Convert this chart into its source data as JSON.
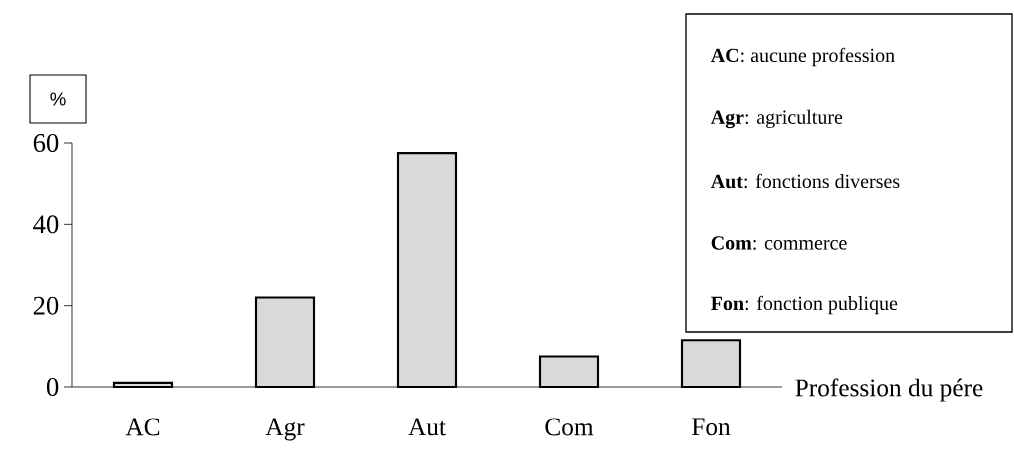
{
  "chart_data": {
    "type": "bar",
    "ylabel": "%",
    "xlabel": "Profession du pére",
    "categories": [
      "AC",
      "Agr",
      "Aut",
      "Com",
      "Fon"
    ],
    "values": [
      1,
      22,
      57.5,
      7.5,
      11.5
    ],
    "color": "#d9d9d9",
    "ylim": [
      0,
      60
    ],
    "yticks": [
      0,
      20,
      40,
      60
    ],
    "annotations": [
      "**AC**: aucune profession",
      "**Agr**: agriculture",
      "**Aut**: fonctions diverses",
      "**Com**: commerce",
      "**Fon**: fonction publique"
    ]
  }
}
